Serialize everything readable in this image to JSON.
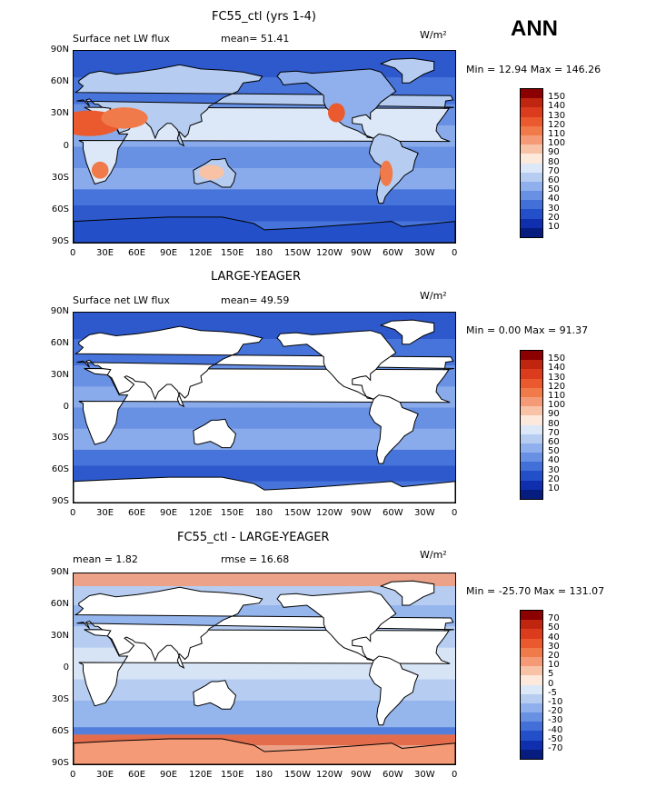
{
  "season": "ANN",
  "units": "W/m²",
  "panels": [
    {
      "title": "FC55_ctl (yrs 1-4)",
      "left_text": "Surface net LW flux",
      "mean_text": "mean=   51.41",
      "units_text": "W/m²",
      "minmax": "Min =   12.94  Max = 146.26",
      "colorbar_labels": [
        "150",
        "140",
        "130",
        "120",
        "110",
        "100",
        "90",
        "80",
        "70",
        "60",
        "50",
        "40",
        "30",
        "20",
        "10"
      ],
      "colors": [
        "#8b0000",
        "#c0260f",
        "#dc3c1e",
        "#ea5a2e",
        "#f07a4a",
        "#f59a76",
        "#f8c2a6",
        "#fde8dc",
        "#dce8f7",
        "#b6cdf1",
        "#8fb0ec",
        "#6890e3",
        "#4270d8",
        "#2350c8",
        "#0f2fae",
        "#061c7e"
      ]
    },
    {
      "title": "LARGE-YEAGER",
      "left_text": "Surface net LW flux",
      "mean_text": "mean=   49.59",
      "units_text": "W/m²",
      "minmax": "Min =    0.00  Max =  91.37",
      "colorbar_labels": [
        "150",
        "140",
        "130",
        "120",
        "110",
        "100",
        "90",
        "80",
        "70",
        "60",
        "50",
        "40",
        "30",
        "20",
        "10"
      ],
      "colors": [
        "#8b0000",
        "#c0260f",
        "#dc3c1e",
        "#ea5a2e",
        "#f07a4a",
        "#f59a76",
        "#f8c2a6",
        "#fde8dc",
        "#dce8f7",
        "#b6cdf1",
        "#8fb0ec",
        "#6890e3",
        "#4270d8",
        "#2350c8",
        "#0f2fae",
        "#061c7e"
      ]
    },
    {
      "title": "FC55_ctl - LARGE-YEAGER",
      "left_text": "mean =    1.82",
      "mean_text": "rmse =   16.68",
      "units_text": "W/m²",
      "minmax": "Min = -25.70  Max = 131.07",
      "colorbar_labels": [
        "70",
        "50",
        "40",
        "30",
        "20",
        "10",
        "5",
        "0",
        "-5",
        "-10",
        "-20",
        "-30",
        "-40",
        "-50",
        "-70"
      ],
      "colors": [
        "#8b0000",
        "#c0260f",
        "#dc3c1e",
        "#ea5a2e",
        "#f07a4a",
        "#f59a76",
        "#f8c2a6",
        "#fde8dc",
        "#dce8f7",
        "#b6cdf1",
        "#8fb0ec",
        "#6890e3",
        "#4270d8",
        "#2350c8",
        "#0f2fae",
        "#061c7e"
      ]
    }
  ],
  "lat_labels": [
    "90N",
    "60N",
    "30N",
    "0",
    "30S",
    "60S",
    "90S"
  ],
  "lon_labels": [
    "0",
    "30E",
    "60E",
    "90E",
    "120E",
    "150E",
    "180",
    "150W",
    "120W",
    "90W",
    "60W",
    "30W",
    "0"
  ],
  "land_color": "#ffffff",
  "ocean_base": "#7aa0e8"
}
